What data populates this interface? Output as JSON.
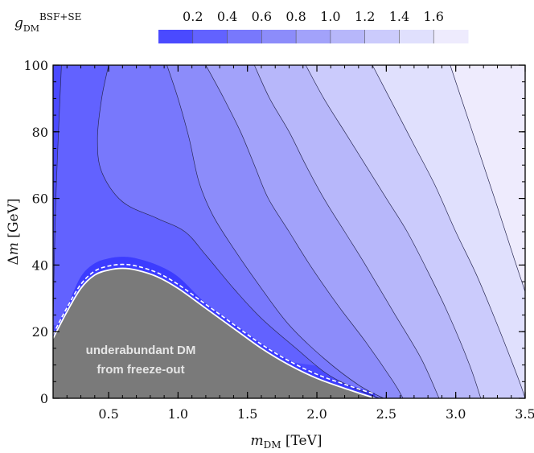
{
  "chart_data": {
    "type": "area",
    "title": "",
    "xlabel": "m_DM [TeV]",
    "ylabel": "Δm [GeV]",
    "xlim": [
      0.1,
      3.5
    ],
    "ylim": [
      0,
      100
    ],
    "x_ticks": [
      "0.5",
      "1.0",
      "1.5",
      "2.0",
      "2.5",
      "3.0",
      "3.5"
    ],
    "y_ticks": [
      "0",
      "20",
      "40",
      "60",
      "80",
      "100"
    ],
    "legend": {
      "title": "g_DM^BSF+SE",
      "labels": [
        "0.2",
        "0.4",
        "0.6",
        "0.8",
        "1.0",
        "1.2",
        "1.4",
        "1.6"
      ],
      "colors": [
        "#4a4aff",
        "#6262ff",
        "#7878fc",
        "#8c8cfa",
        "#a2a2fa",
        "#b7b7fa",
        "#cbcbfc",
        "#e0e0fd",
        "#eeebfd"
      ]
    },
    "region_text": [
      "underabundant DM",
      "from freeze-out"
    ],
    "region_color": "#7a7a7a",
    "boundary_curve": {
      "x": [
        0.1,
        0.2,
        0.3,
        0.4,
        0.5,
        0.6,
        0.7,
        0.85,
        1.0,
        1.2,
        1.4,
        1.6,
        1.8,
        2.0,
        2.2,
        2.42
      ],
      "y": [
        18,
        26,
        33,
        37,
        38.5,
        39,
        38.5,
        36.5,
        33,
        27,
        21,
        15,
        10,
        6,
        3,
        0
      ]
    },
    "contours": [
      {
        "level": 1,
        "x": [
          0.16,
          0.12,
          0.1
        ],
        "y": [
          100,
          60,
          22
        ]
      },
      {
        "level": 2,
        "x": [
          0.5,
          0.45,
          0.42,
          0.45,
          0.6,
          0.85,
          1.05,
          1.2,
          1.4,
          1.6,
          1.85,
          2.05,
          2.22,
          2.45
        ],
        "y": [
          100,
          90,
          78,
          68,
          59,
          54,
          50,
          43,
          33,
          24,
          15,
          8,
          4,
          0
        ]
      },
      {
        "level": 3,
        "x": [
          0.92,
          1.0,
          1.08,
          1.15,
          1.25,
          1.4,
          1.6,
          1.8,
          2.05,
          2.3,
          2.48
        ],
        "y": [
          100,
          90,
          78,
          65,
          55,
          45,
          33,
          22,
          12,
          4,
          0
        ]
      },
      {
        "level": 4,
        "x": [
          1.2,
          1.33,
          1.45,
          1.55,
          1.65,
          1.8,
          1.95,
          2.15,
          2.35,
          2.55,
          2.62
        ],
        "y": [
          100,
          90,
          80,
          70,
          60,
          50,
          40,
          28,
          17,
          5,
          0
        ]
      },
      {
        "level": 5,
        "x": [
          1.55,
          1.66,
          1.8,
          1.92,
          2.05,
          2.2,
          2.35,
          2.55,
          2.75,
          2.88
        ],
        "y": [
          100,
          90,
          80,
          70,
          60,
          50,
          40,
          26,
          12,
          0
        ]
      },
      {
        "level": 6,
        "x": [
          1.92,
          2.05,
          2.2,
          2.35,
          2.5,
          2.65,
          2.8,
          2.95,
          3.1,
          3.18
        ],
        "y": [
          100,
          90,
          80,
          70,
          60,
          50,
          38,
          25,
          10,
          0
        ]
      },
      {
        "level": 7,
        "x": [
          2.4,
          2.55,
          2.7,
          2.85,
          3.0,
          3.15,
          3.3,
          3.45,
          3.5
        ],
        "y": [
          100,
          88,
          76,
          64,
          50,
          37,
          22,
          6,
          0
        ]
      },
      {
        "level": 8,
        "x": [
          2.96,
          3.12,
          3.28,
          3.42,
          3.5
        ],
        "y": [
          100,
          80,
          60,
          42,
          32
        ]
      }
    ]
  }
}
